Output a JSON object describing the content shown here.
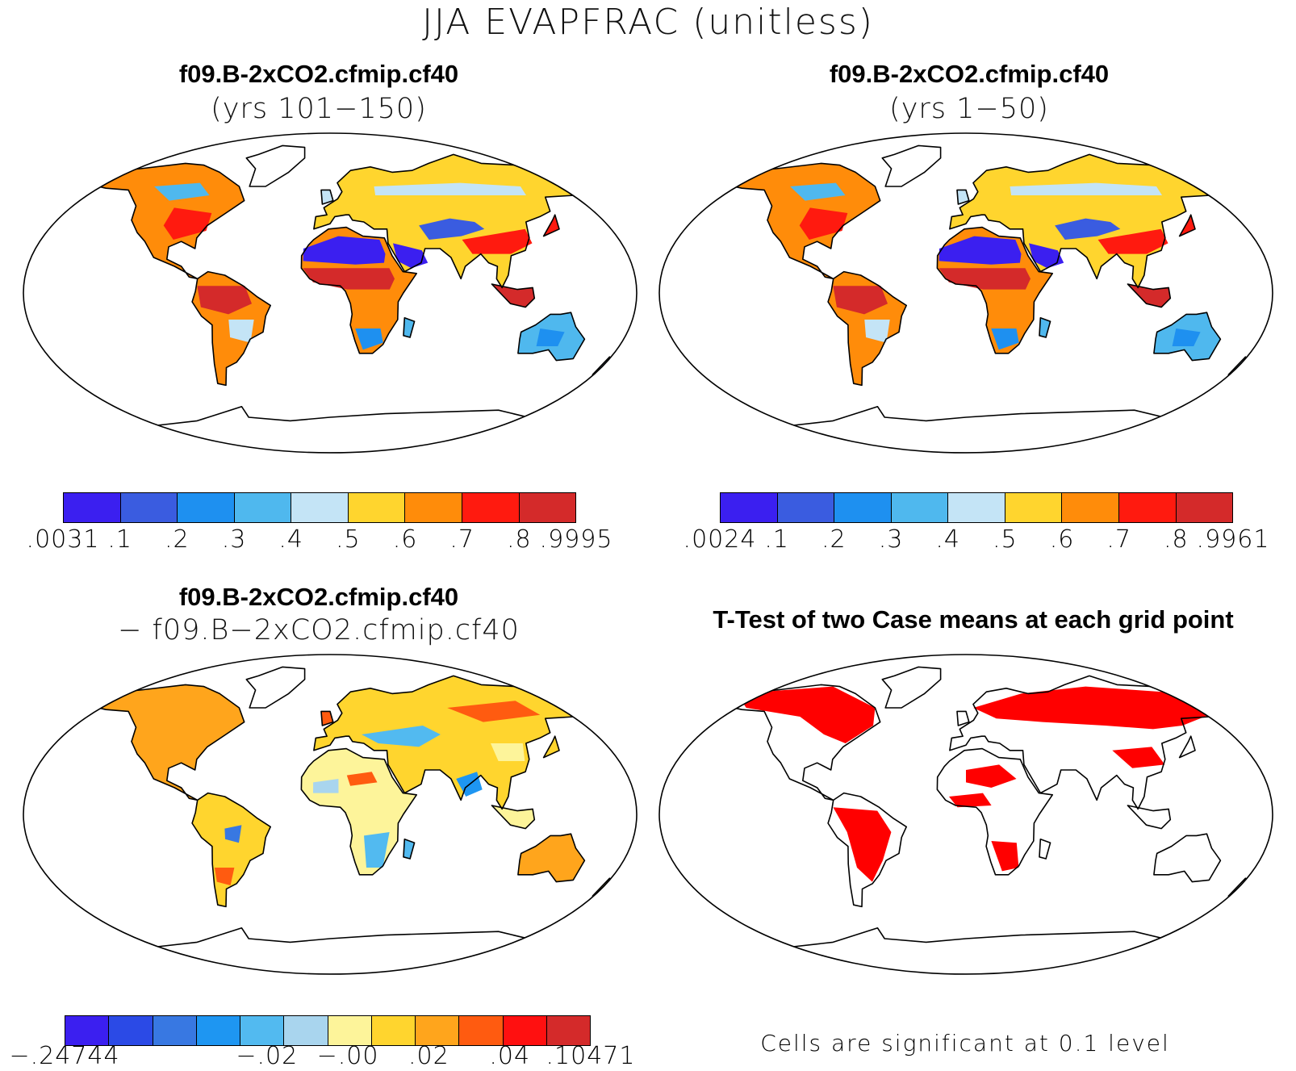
{
  "figure_title": "JJA EVAPFRAC (unitless)",
  "panels": [
    {
      "title": "f09.B-2xCO2.cfmip.cf40",
      "subtitle": "(yrs 101−150)"
    },
    {
      "title": "f09.B-2xCO2.cfmip.cf40",
      "subtitle": "(yrs 1−50)"
    },
    {
      "title": "f09.B-2xCO2.cfmip.cf40",
      "subtitle": "− f09.B−2xCO2.cfmip.cf40"
    },
    {
      "title": "T-Test of two Case means at each grid point",
      "subtitle": ""
    }
  ],
  "colorbars": [
    {
      "colors": [
        "#3b1ff0",
        "#3a5ce0",
        "#1e90f0",
        "#4fb8ee",
        "#c4e4f6",
        "#ffd52e",
        "#ff8c0a",
        "#ff1a0f",
        "#d42a2a"
      ],
      "labels": [
        ".0031",
        ".1",
        ".2",
        ".3",
        ".4",
        ".5",
        ".6",
        ".7",
        ".8",
        ".9995"
      ]
    },
    {
      "colors": [
        "#3b1ff0",
        "#3a5ce0",
        "#1e90f0",
        "#4fb8ee",
        "#c4e4f6",
        "#ffd52e",
        "#ff8c0a",
        "#ff1a0f",
        "#d42a2a"
      ],
      "labels": [
        ".0024",
        ".1",
        ".2",
        ".3",
        ".4",
        ".5",
        ".6",
        ".7",
        ".8",
        ".9961"
      ]
    },
    {
      "colors": [
        "#3b1ff0",
        "#2b4ae6",
        "#3878e2",
        "#1e96f2",
        "#52baf0",
        "#a9d5ee",
        "#fdf49a",
        "#ffd52e",
        "#ffa51c",
        "#ff5b10",
        "#ff1010",
        "#d42a2a"
      ],
      "labels": [
        "−.24744",
        "",
        "",
        "",
        "",
        "−.02",
        "",
        "−.00",
        "",
        ".02",
        "",
        ".04",
        "",
        ".10471"
      ]
    }
  ],
  "significance_note": "Cells are significant at 0.1 level",
  "significance_color": "#ff0000",
  "coast_color": "#000000"
}
